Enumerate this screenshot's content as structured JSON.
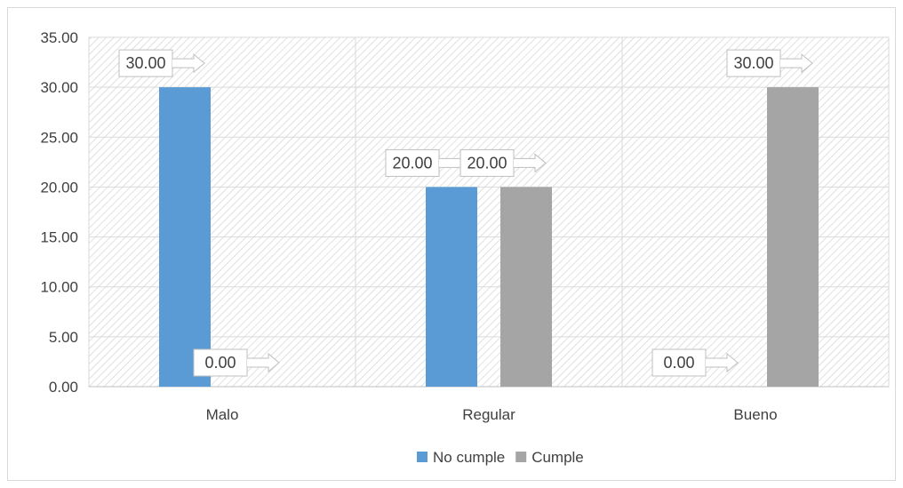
{
  "chart_data": {
    "type": "bar",
    "categories": [
      "Malo",
      "Regular",
      "Bueno"
    ],
    "series": [
      {
        "name": "No cumple",
        "values": [
          30.0,
          20.0,
          0.0
        ],
        "color": "#5b9bd5"
      },
      {
        "name": "Cumple",
        "values": [
          0.0,
          20.0,
          30.0
        ],
        "color": "#a5a5a5"
      }
    ],
    "ylim": [
      0,
      35
    ],
    "yticks": [
      "0.00",
      "5.00",
      "10.00",
      "15.00",
      "20.00",
      "25.00",
      "30.00",
      "35.00"
    ],
    "data_labels": [
      [
        "30.00",
        "20.00",
        "0.00"
      ],
      [
        "0.00",
        "20.00",
        "30.00"
      ]
    ],
    "grid": true,
    "legend_position": "bottom",
    "title": "",
    "xlabel": "",
    "ylabel": ""
  }
}
